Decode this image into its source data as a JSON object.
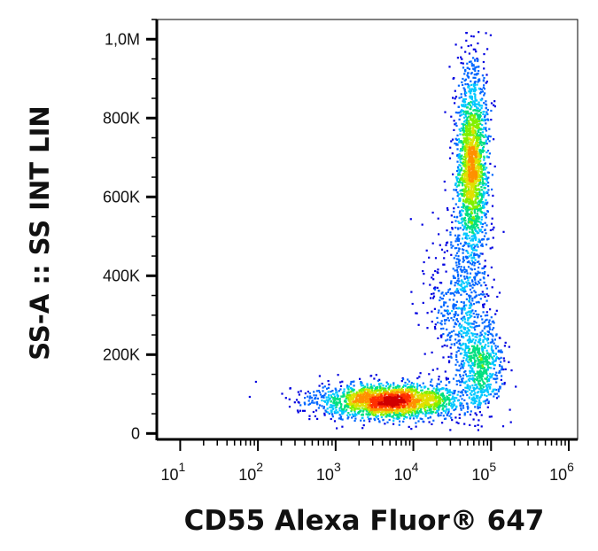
{
  "chart_data": {
    "type": "scatter",
    "subtype": "flow-cytometry density dot plot",
    "xlabel": "CD55 Alexa Fluor® 647",
    "ylabel": "SS-A :: SS INT LIN",
    "x_scale": "log",
    "y_scale": "linear",
    "xlim": [
      5,
      1300000
    ],
    "ylim": [
      -15000,
      1050000
    ],
    "x_ticks": [
      {
        "value": 10,
        "base": "10",
        "exp": "1"
      },
      {
        "value": 100,
        "base": "10",
        "exp": "2"
      },
      {
        "value": 1000,
        "base": "10",
        "exp": "3"
      },
      {
        "value": 10000,
        "base": "10",
        "exp": "4"
      },
      {
        "value": 100000,
        "base": "10",
        "exp": "5"
      },
      {
        "value": 1000000,
        "base": "10",
        "exp": "6"
      }
    ],
    "y_ticks": [
      {
        "value": 0,
        "label": "0"
      },
      {
        "value": 200000,
        "label": "200K"
      },
      {
        "value": 400000,
        "label": "400K"
      },
      {
        "value": 600000,
        "label": "600K"
      },
      {
        "value": 800000,
        "label": "800K"
      },
      {
        "value": 1000000,
        "label": "1,0M"
      }
    ],
    "colormap": [
      "#0000e0",
      "#0066ff",
      "#00c8ff",
      "#00e080",
      "#80f000",
      "#e0e000",
      "#ff9000",
      "#ff3000",
      "#d00000"
    ],
    "populations": [
      {
        "x_center": 5000,
        "x_log_sd": 0.45,
        "y_center": 85000,
        "y_sd": 22000,
        "weight": 0.42
      },
      {
        "x_center": 55000,
        "x_log_sd": 0.1,
        "y_center": 680000,
        "y_sd": 130000,
        "weight": 0.36
      },
      {
        "x_center": 70000,
        "x_log_sd": 0.15,
        "y_center": 170000,
        "y_sd": 55000,
        "weight": 0.12
      },
      {
        "x_center": 40000,
        "x_log_sd": 0.2,
        "y_center": 330000,
        "y_sd": 100000,
        "weight": 0.1
      }
    ],
    "grid": false,
    "legend": false
  }
}
